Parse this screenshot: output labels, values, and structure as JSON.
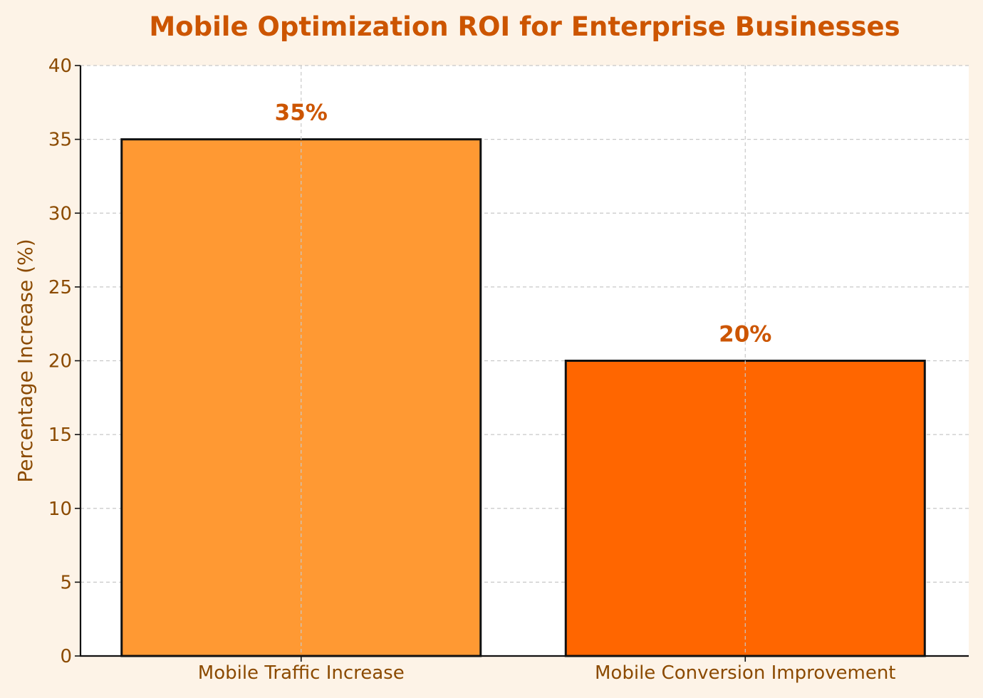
{
  "chart_data": {
    "type": "bar",
    "title": "Mobile Optimization ROI for Enterprise Businesses",
    "xlabel": "",
    "ylabel": "Percentage Increase (%)",
    "categories": [
      "Mobile Traffic Increase",
      "Mobile Conversion Improvement"
    ],
    "values": [
      35,
      20
    ],
    "data_labels": [
      "35%",
      "20%"
    ],
    "bar_colors": [
      "#ff9933",
      "#ff6600"
    ],
    "ylim": [
      0,
      40
    ],
    "yticks": [
      0,
      5,
      10,
      15,
      20,
      25,
      30,
      35,
      40
    ],
    "grid": true,
    "colors": {
      "background": "#fdf3e7",
      "plot_background": "#ffffff",
      "title": "#cc5500",
      "axis_text": "#8b4a00",
      "data_label": "#cc5500",
      "grid": "#c8c8c8",
      "bar_edge": "#111111"
    }
  }
}
